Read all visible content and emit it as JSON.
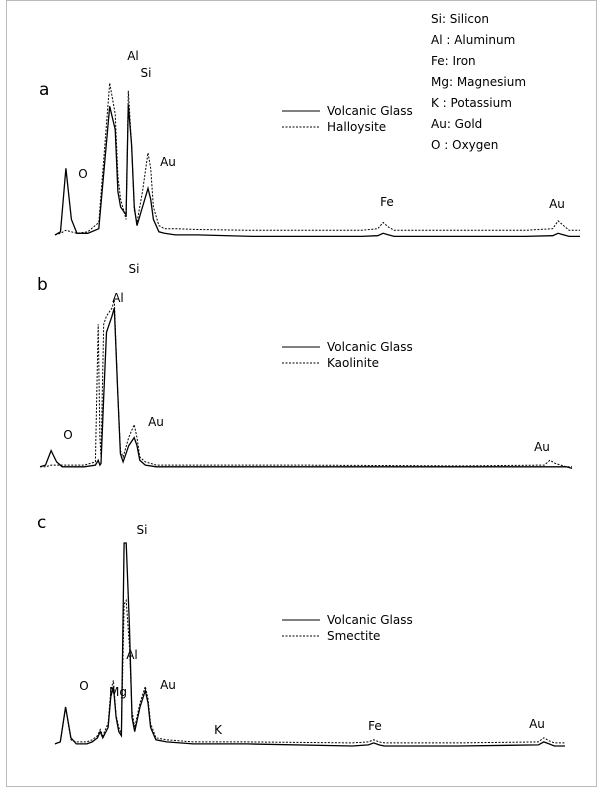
{
  "figure": {
    "element_key": [
      "Si: Silicon",
      "Al : Aluminum",
      "Fe: Iron",
      "Mg: Magnesium",
      "K  : Potassium",
      "Au: Gold",
      "O  : Oxygen"
    ]
  },
  "chart_data": [
    {
      "type": "line",
      "panel": "a",
      "x": [
        0.4,
        0.5,
        0.6,
        0.7,
        0.8,
        1.0,
        1.2,
        1.4,
        1.5,
        1.55,
        1.6,
        1.7,
        1.74,
        1.8,
        1.85,
        1.9,
        2.0,
        2.1,
        2.15,
        2.2,
        2.3,
        2.4,
        2.6,
        3.0,
        4.0,
        5.0,
        6.0,
        6.3,
        6.4,
        6.5,
        6.6,
        6.8,
        7.2,
        8.0,
        9.0,
        9.5,
        9.6,
        9.7,
        9.8,
        9.9,
        10.0
      ],
      "series": [
        {
          "name": "Volcanic Glass",
          "style": "solid",
          "values": [
            2,
            4,
            45,
            12,
            3,
            3,
            6,
            85,
            70,
            30,
            20,
            15,
            86,
            60,
            20,
            8,
            20,
            32,
            25,
            12,
            4,
            3,
            2,
            2,
            1,
            1,
            1,
            1.5,
            3,
            2,
            1,
            1,
            1,
            1,
            1,
            1.5,
            3,
            2,
            1,
            1,
            1
          ]
        },
        {
          "name": "Halloysite",
          "style": "dashed",
          "values": [
            2,
            3,
            5,
            4,
            3,
            4,
            10,
            100,
            80,
            40,
            25,
            12,
            95,
            60,
            18,
            10,
            30,
            55,
            45,
            20,
            8,
            6,
            6,
            5.5,
            5,
            5,
            5,
            6,
            10,
            7,
            5,
            5,
            5,
            5,
            5,
            6,
            11,
            8,
            5,
            5,
            5
          ]
        }
      ],
      "peak_labels": [
        "O",
        "Al",
        "Si",
        "Au",
        "Fe",
        "Au"
      ]
    },
    {
      "type": "line",
      "panel": "b",
      "x": [
        0.4,
        0.5,
        0.6,
        0.7,
        0.8,
        1.0,
        1.2,
        1.4,
        1.45,
        1.48,
        1.5,
        1.55,
        1.6,
        1.7,
        1.74,
        1.8,
        1.85,
        1.9,
        2.0,
        2.1,
        2.15,
        2.2,
        2.3,
        2.5,
        3.0,
        5.0,
        8.0,
        9.5,
        9.6,
        9.7,
        9.8,
        9.9,
        10.0
      ],
      "series": [
        {
          "name": "Volcanic Glass",
          "style": "solid",
          "values": [
            2,
            3,
            12,
            5,
            2,
            2,
            2,
            3,
            6,
            3,
            4,
            45,
            85,
            95,
            100,
            50,
            10,
            5,
            15,
            20,
            15,
            6,
            3,
            2,
            2,
            2,
            2,
            2,
            2,
            2,
            2,
            2,
            1
          ]
        },
        {
          "name": "Kaolinite",
          "style": "dashed",
          "values": [
            2,
            2,
            3,
            3,
            3,
            3,
            3,
            5,
            90,
            20,
            8,
            90,
            95,
            100,
            105,
            50,
            12,
            8,
            20,
            28,
            20,
            8,
            5,
            3,
            3,
            3,
            2.5,
            3,
            6,
            4,
            3,
            2,
            2
          ]
        }
      ],
      "peak_labels": [
        "O",
        "Al",
        "Si",
        "Au",
        "Au"
      ]
    },
    {
      "type": "line",
      "panel": "c",
      "x": [
        0.4,
        0.5,
        0.6,
        0.7,
        0.8,
        1.0,
        1.1,
        1.2,
        1.25,
        1.3,
        1.4,
        1.45,
        1.5,
        1.55,
        1.6,
        1.65,
        1.7,
        1.74,
        1.8,
        1.85,
        1.9,
        2.0,
        2.1,
        2.15,
        2.2,
        2.3,
        2.5,
        3.0,
        3.31,
        3.5,
        4.0,
        6.0,
        6.3,
        6.4,
        6.5,
        6.6,
        8.0,
        9.5,
        9.6,
        9.7,
        9.8,
        10.0
      ],
      "series": [
        {
          "name": "Volcanic Glass",
          "style": "solid",
          "values": [
            2,
            3,
            20,
            5,
            2,
            2,
            3,
            5,
            8,
            5,
            10,
            25,
            30,
            15,
            8,
            6,
            100,
            100,
            60,
            15,
            8,
            20,
            28,
            22,
            10,
            4,
            3,
            2,
            2,
            2,
            2,
            1,
            1.5,
            2.5,
            1.5,
            1,
            1,
            1.5,
            3,
            2,
            1,
            1
          ]
        },
        {
          "name": "Smectite",
          "style": "dashed",
          "values": [
            2,
            3,
            20,
            4,
            3,
            3,
            4,
            6,
            9,
            6,
            12,
            28,
            33,
            16,
            10,
            7,
            70,
            72,
            50,
            18,
            10,
            22,
            30,
            24,
            12,
            5,
            4,
            3,
            3,
            3,
            3,
            2.5,
            3,
            4,
            3,
            2.5,
            2.5,
            3,
            5,
            3.5,
            2.5,
            2.5
          ]
        }
      ],
      "peak_labels": [
        "O",
        "Mg",
        "Al",
        "Si",
        "Au",
        "K",
        "Fe",
        "Au"
      ]
    }
  ]
}
